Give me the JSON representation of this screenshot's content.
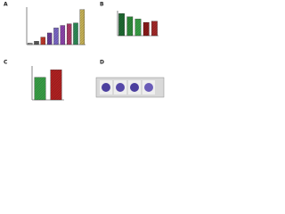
{
  "chart_data": [
    {
      "type": "bar",
      "label": "A",
      "categories": [
        null,
        null,
        null,
        null,
        null,
        null,
        null,
        null,
        null
      ],
      "values": [
        0.2,
        0.4,
        0.9,
        1.4,
        2.0,
        2.3,
        2.5,
        2.6,
        4.2
      ],
      "colors": [
        "#9e9e9e",
        "#5a5a5a",
        "#c0392b",
        "#6a3d9a",
        "#7b68c8",
        "#8e44ad",
        "#b03a6a",
        "#2e8b57",
        "#c9b458"
      ],
      "ylim": [
        0,
        4.5
      ]
    },
    {
      "type": "bar",
      "label": "B",
      "categories": [
        null,
        null,
        null,
        null,
        null
      ],
      "values": [
        4.0,
        3.4,
        3.0,
        2.4,
        2.6
      ],
      "colors": [
        "#1e6b32",
        "#2e8b3a",
        "#3aa047",
        "#8b1a1a",
        "#a52a2a"
      ],
      "ylim": [
        0,
        4.5
      ]
    },
    {
      "type": "bar",
      "label": "C",
      "categories": [
        null,
        null
      ],
      "values": [
        3.0,
        4.0
      ],
      "colors": [
        "#3aa047",
        "#b22222"
      ],
      "ylim": [
        0,
        4.5
      ]
    },
    {
      "type": "image",
      "label": "D"
    }
  ]
}
